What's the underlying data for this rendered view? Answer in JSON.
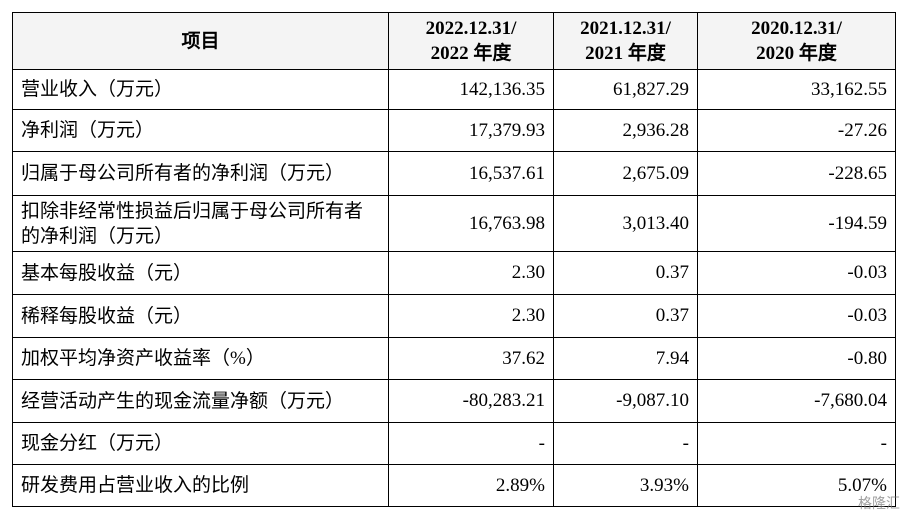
{
  "table": {
    "header": [
      [
        "项目"
      ],
      [
        "2022.12.31/",
        "2022 年度"
      ],
      [
        "2021.12.31/",
        "2021 年度"
      ],
      [
        "2020.12.31/",
        "2020 年度"
      ]
    ],
    "rows": [
      [
        "营业收入（万元）",
        "142,136.35",
        "61,827.29",
        "33,162.55"
      ],
      [
        "净利润（万元）",
        "17,379.93",
        "2,936.28",
        "-27.26"
      ],
      [
        "归属于母公司所有者的净利润（万元）",
        "16,537.61",
        "2,675.09",
        "-228.65"
      ],
      [
        "扣除非经常性损益后归属于母公司所有者的净利润（万元）",
        "16,763.98",
        "3,013.40",
        "-194.59"
      ],
      [
        "基本每股收益（元）",
        "2.30",
        "0.37",
        "-0.03"
      ],
      [
        "稀释每股收益（元）",
        "2.30",
        "0.37",
        "-0.03"
      ],
      [
        "加权平均净资产收益率（%）",
        "37.62",
        "7.94",
        "-0.80"
      ],
      [
        "经营活动产生的现金流量净额（万元）",
        "-80,283.21",
        "-9,087.10",
        "-7,680.04"
      ],
      [
        "现金分红（万元）",
        "-",
        "-",
        "-"
      ],
      [
        "研发费用占营业收入的比例",
        "2.89%",
        "3.93%",
        "5.07%"
      ]
    ]
  },
  "watermark": "格隆汇"
}
